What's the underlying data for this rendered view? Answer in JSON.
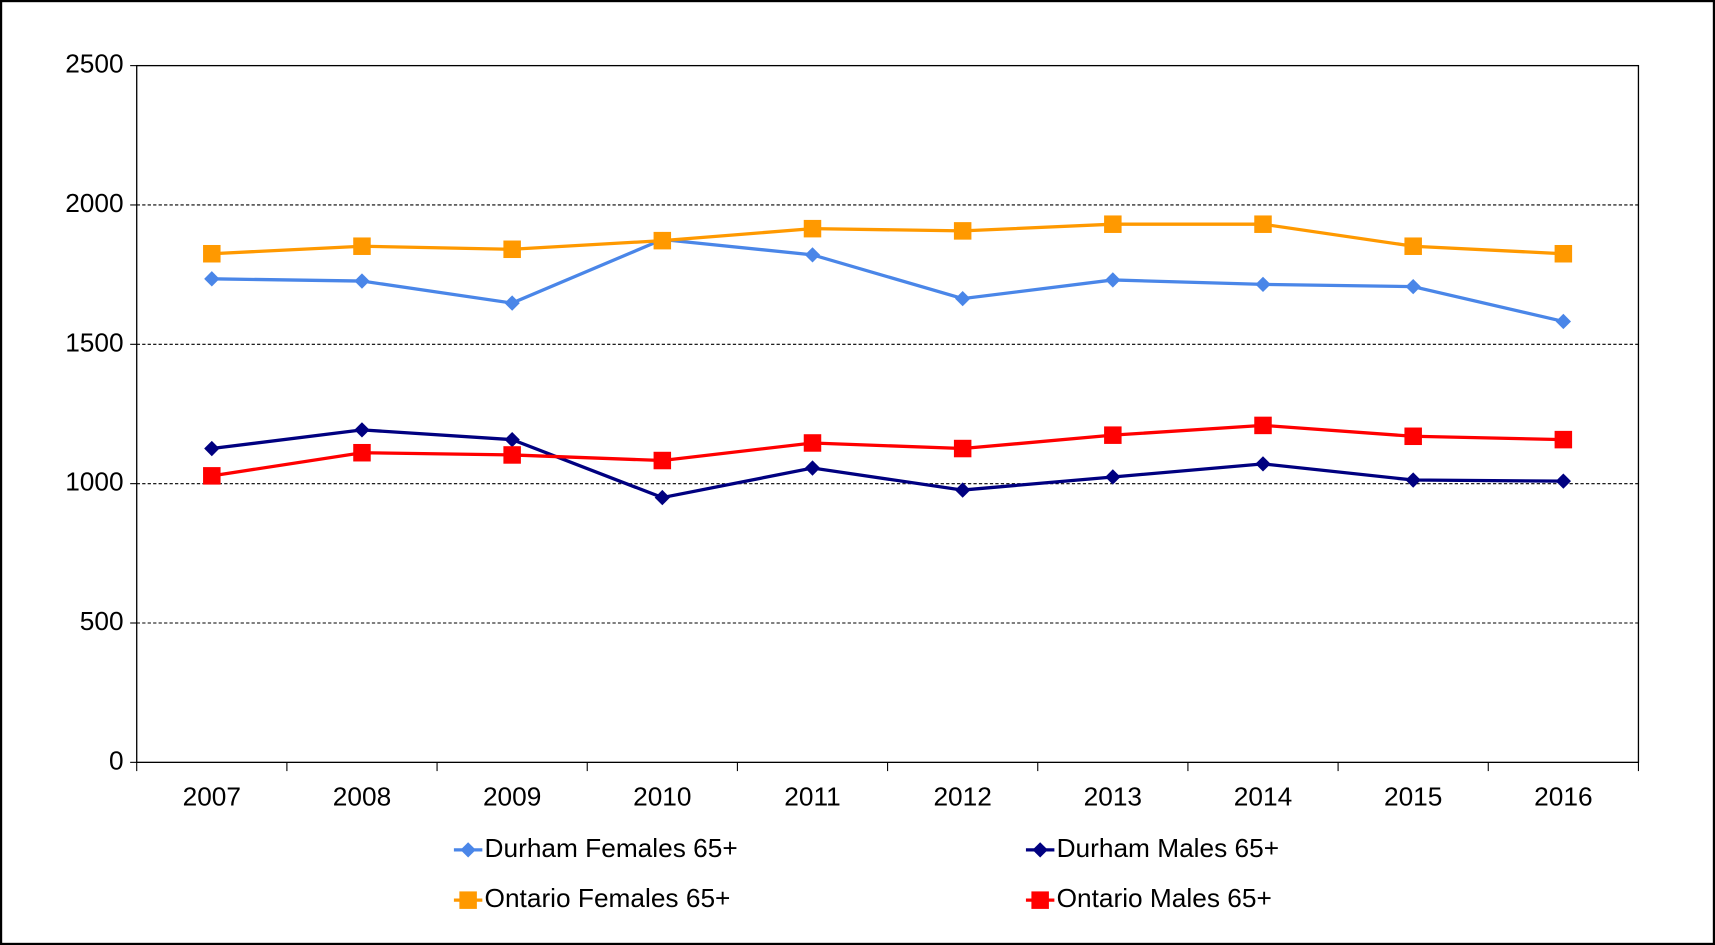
{
  "chart_data": {
    "type": "line",
    "categories": [
      "2007",
      "2008",
      "2009",
      "2010",
      "2011",
      "2012",
      "2013",
      "2014",
      "2015",
      "2016"
    ],
    "series": [
      {
        "name": "Durham Females 65+",
        "color": "#4a86e8",
        "marker": "diamond",
        "values": [
          1735,
          1727,
          1648,
          1876,
          1821,
          1664,
          1731,
          1715,
          1707,
          1582
        ]
      },
      {
        "name": "Durham Males 65+",
        "color": "#000080",
        "marker": "diamond",
        "values": [
          1126,
          1193,
          1158,
          950,
          1056,
          977,
          1024,
          1071,
          1013,
          1009
        ]
      },
      {
        "name": "Ontario Females 65+",
        "color": "#ff9900",
        "marker": "square",
        "values": [
          1825,
          1852,
          1841,
          1872,
          1915,
          1907,
          1931,
          1931,
          1852,
          1825
        ]
      },
      {
        "name": "Ontario Males 65+",
        "color": "#ff0000",
        "marker": "square",
        "values": [
          1028,
          1111,
          1103,
          1083,
          1146,
          1126,
          1174,
          1209,
          1170,
          1158
        ]
      }
    ],
    "ylim": [
      0,
      2500
    ],
    "yticks": [
      0,
      500,
      1000,
      1500,
      2000,
      2500
    ],
    "grid": true,
    "legend": "bottom"
  }
}
